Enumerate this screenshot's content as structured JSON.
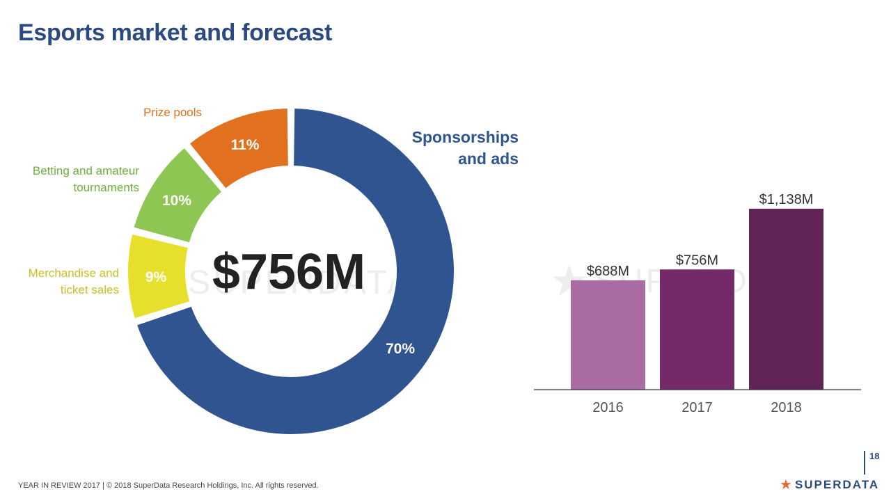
{
  "slide": {
    "title": "Esports market and forecast",
    "footer": "YEAR IN REVIEW 2017  |  © 2018 SuperData Research Holdings, Inc. All rights reserved.",
    "page_number": "18",
    "brand": {
      "text": "SUPERDATA",
      "icon": "star-icon",
      "color": "#e06c3a"
    },
    "watermark": "SUPERDATA"
  },
  "chart_data": [
    {
      "type": "pie",
      "variant": "donut",
      "center_label": "$756M",
      "slices": [
        {
          "label": "Sponsorships and ads",
          "value": 70,
          "value_label": "70%",
          "color": "#2f5490",
          "label_color": "#2f5490"
        },
        {
          "label": "Merchandise and ticket sales",
          "value": 9,
          "value_label": "9%",
          "color": "#e6df2c",
          "label_color": "#c9c023"
        },
        {
          "label": "Betting and amateur tournaments",
          "value": 10,
          "value_label": "10%",
          "color": "#8dc653",
          "label_color": "#6fae3c"
        },
        {
          "label": "Prize pools",
          "value": 11,
          "value_label": "11%",
          "color": "#e2711f",
          "label_color": "#e2711f"
        }
      ]
    },
    {
      "type": "bar",
      "categories": [
        "2016",
        "2017",
        "2018"
      ],
      "values": [
        688,
        756,
        1138
      ],
      "value_labels": [
        "$688M",
        "$756M",
        "$1,138M"
      ],
      "colors": [
        "#a86ca2",
        "#742a68",
        "#612456"
      ],
      "ylim": [
        0,
        1138
      ],
      "grid": false
    }
  ]
}
